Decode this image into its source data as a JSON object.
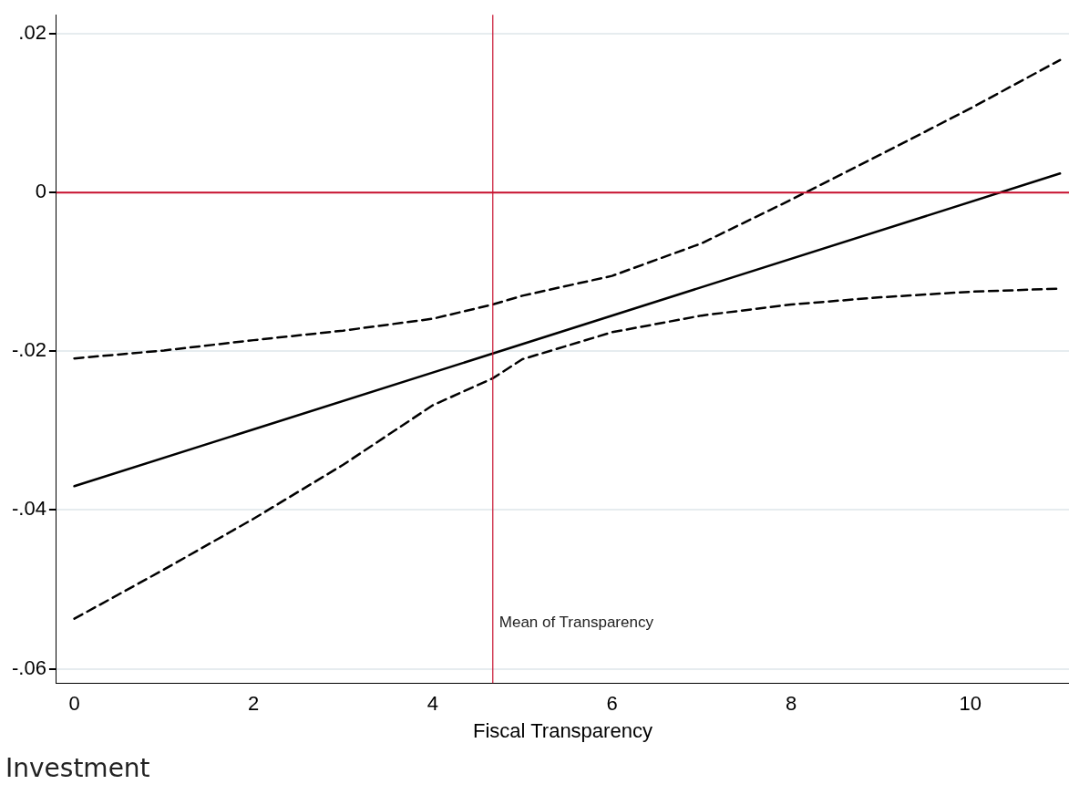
{
  "chart_data": {
    "type": "line",
    "xlabel": "Fiscal Transparency",
    "annotations": [
      "Investment"
    ],
    "xlim": [
      -0.2,
      11.1
    ],
    "xticks": [
      0,
      2,
      4,
      6,
      8,
      10
    ],
    "ylim": [
      -0.0618,
      0.0224
    ],
    "yticks": [
      {
        "value": 0.02,
        "label": ".02"
      },
      {
        "value": 0,
        "label": "0"
      },
      {
        "value": -0.02,
        "label": "-.02"
      },
      {
        "value": -0.04,
        "label": "-.04"
      },
      {
        "value": -0.06,
        "label": "-.06"
      }
    ],
    "grid": "y",
    "legend": false,
    "marker": "none",
    "series": [
      {
        "color": "#000000",
        "line_style": "solid",
        "x": [
          0,
          11
        ],
        "values": [
          -0.037,
          0.0024
        ]
      },
      {
        "color": "#000000",
        "line_style": "dashed",
        "x": [
          0,
          1,
          2,
          3,
          4,
          4.67,
          5,
          6,
          7,
          8,
          9,
          10,
          11
        ],
        "values": [
          -0.0209,
          -0.0199,
          -0.0186,
          -0.0174,
          -0.0159,
          -0.0141,
          -0.013,
          -0.0105,
          -0.0064,
          -0.0009,
          0.0048,
          0.0106,
          0.0167
        ]
      },
      {
        "color": "#000000",
        "line_style": "dashed",
        "x": [
          0,
          1,
          2,
          3,
          4,
          4.67,
          5,
          6,
          7,
          8,
          9,
          10,
          11
        ],
        "values": [
          -0.0537,
          -0.0475,
          -0.0411,
          -0.0343,
          -0.0268,
          -0.0234,
          -0.021,
          -0.0176,
          -0.0155,
          -0.0141,
          -0.0132,
          -0.0125,
          -0.0121
        ]
      }
    ],
    "ref_lines": [
      {
        "axis": "y",
        "value": 0,
        "label": null,
        "color": "#c8102e"
      },
      {
        "axis": "x",
        "value": 4.67,
        "label": "Mean of Transparency",
        "color": "#c8102e"
      }
    ]
  }
}
